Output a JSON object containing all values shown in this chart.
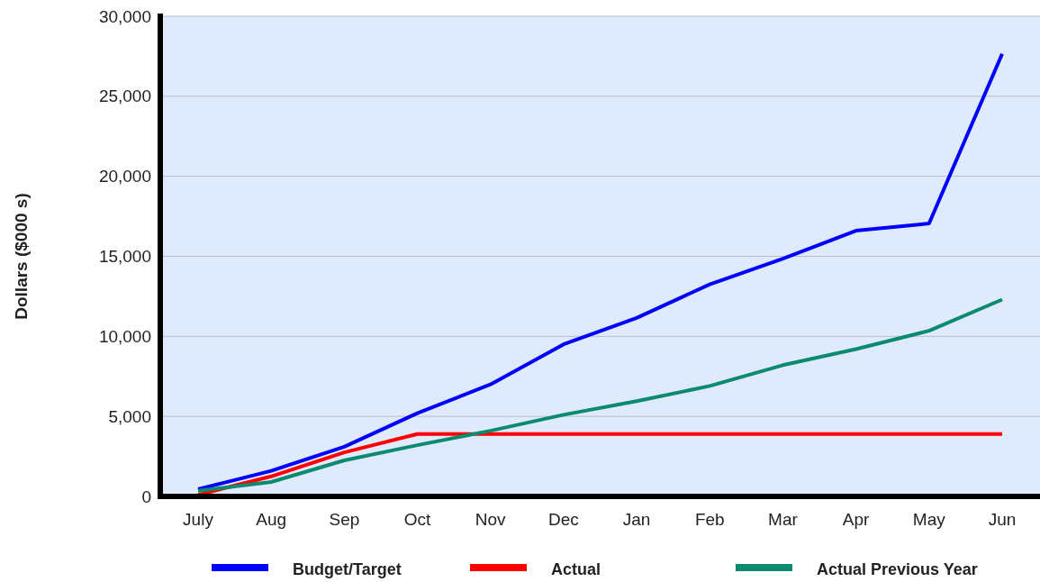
{
  "chart_data": {
    "type": "line",
    "ylabel": "Dollars ($000 s)",
    "categories": [
      "July",
      "Aug",
      "Sep",
      "Oct",
      "Nov",
      "Dec",
      "Jan",
      "Feb",
      "Mar",
      "Apr",
      "May",
      "Jun"
    ],
    "series": [
      {
        "name": "Budget/Target",
        "color": "#0000ff",
        "values": [
          450,
          1600,
          3100,
          5200,
          7000,
          9500,
          11150,
          13250,
          14850,
          16600,
          17050,
          27650
        ]
      },
      {
        "name": "Actual",
        "color": "#ff0000",
        "values": [
          100,
          1250,
          2750,
          3900,
          3900,
          3900,
          3900,
          3900,
          3900,
          3900,
          3900,
          3900
        ]
      },
      {
        "name": "Actual Previous Year",
        "color": "#0a8a6e",
        "values": [
          350,
          900,
          2250,
          3200,
          4100,
          5100,
          5950,
          6900,
          8200,
          9200,
          10350,
          12300
        ]
      }
    ],
    "ylim": [
      0,
      30000
    ],
    "yticks": [
      {
        "value": 0,
        "label": "0"
      },
      {
        "value": 5000,
        "label": "5,000"
      },
      {
        "value": 10000,
        "label": "10,000"
      },
      {
        "value": 15000,
        "label": "15,000"
      },
      {
        "value": 20000,
        "label": "20,000"
      },
      {
        "value": 25000,
        "label": "25,000"
      },
      {
        "value": 30000,
        "label": "30,000"
      }
    ],
    "grid": "y",
    "legend": "bottom",
    "marker": "none",
    "line_style": "solid"
  }
}
